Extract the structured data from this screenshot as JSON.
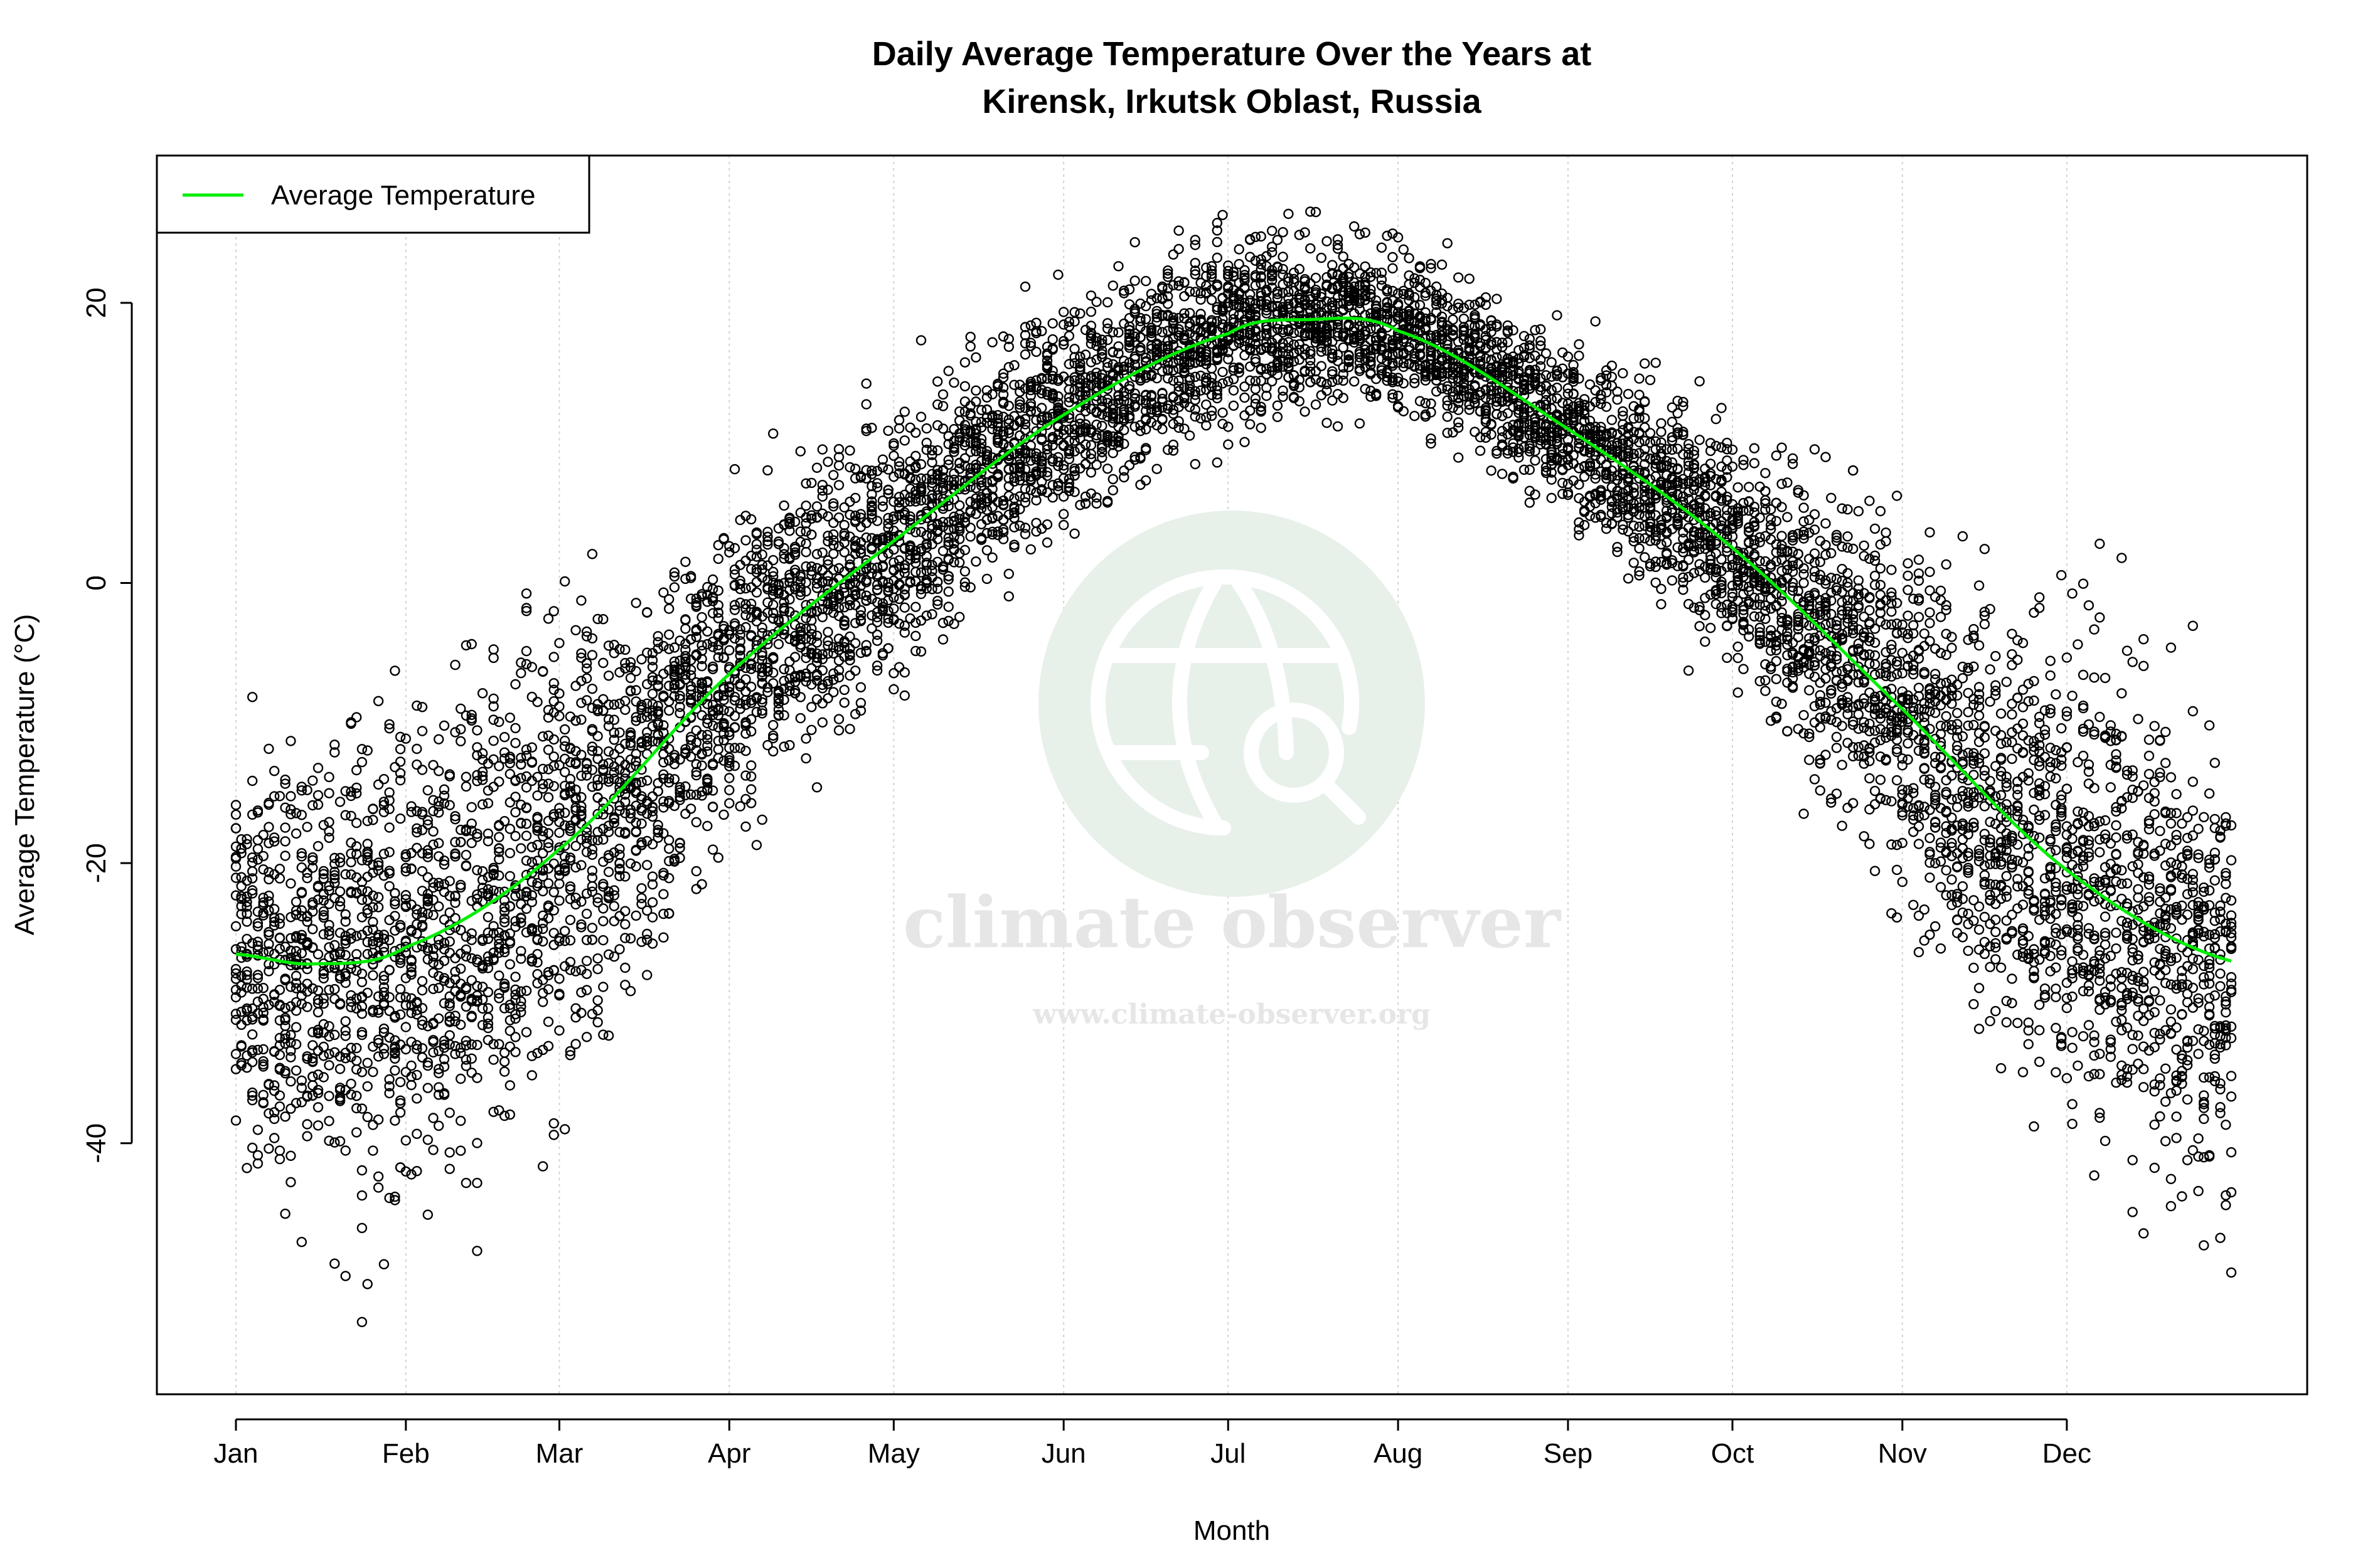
{
  "chart_data": {
    "type": "scatter",
    "title": [
      "Daily Average Temperature Over the Years at",
      "Kirensk, Irkutsk Oblast, Russia"
    ],
    "xlabel": "Month",
    "ylabel": "Average Temperature (°C)",
    "x_tick_labels": [
      "Jan",
      "Feb",
      "Mar",
      "Apr",
      "May",
      "Jun",
      "Jul",
      "Aug",
      "Sep",
      "Oct",
      "Nov",
      "Dec"
    ],
    "x_tick_days": [
      1,
      32,
      60,
      91,
      121,
      152,
      182,
      213,
      244,
      274,
      305,
      335
    ],
    "x_range_days": [
      1,
      365
    ],
    "y_ticks": [
      -40,
      -20,
      0,
      20
    ],
    "ylim": [
      -56,
      28
    ],
    "grid": "vertical dotted at month starts",
    "legend": {
      "position": "top-left",
      "entries": [
        {
          "label": "Average Temperature",
          "color": "#00ee00"
        }
      ]
    },
    "average_series": {
      "name": "Average Temperature",
      "color": "#00ee00",
      "day": [
        1,
        15,
        32,
        60,
        91,
        121,
        152,
        182,
        196,
        213,
        244,
        274,
        305,
        335,
        365
      ],
      "value": [
        -26.5,
        -27.2,
        -26,
        -19,
        -6.5,
        3,
        12,
        17.8,
        18.8,
        18,
        11,
        2.5,
        -9,
        -20.5,
        -27
      ]
    },
    "scatter_envelope": {
      "day": [
        1,
        32,
        60,
        91,
        121,
        152,
        182,
        213,
        244,
        274,
        305,
        335,
        365
      ],
      "min": [
        -54,
        -54,
        -47,
        -27,
        -10,
        0,
        6,
        9,
        2,
        -12,
        -33,
        -47,
        -55
      ],
      "max": [
        -2,
        -1,
        4,
        8,
        18,
        24,
        27,
        26,
        20,
        13,
        6,
        4,
        -2
      ]
    },
    "point_color": "#000000"
  },
  "watermark": {
    "name": "climate observer",
    "url": "www.climate-observer.org",
    "color": "#e8f0ea"
  }
}
